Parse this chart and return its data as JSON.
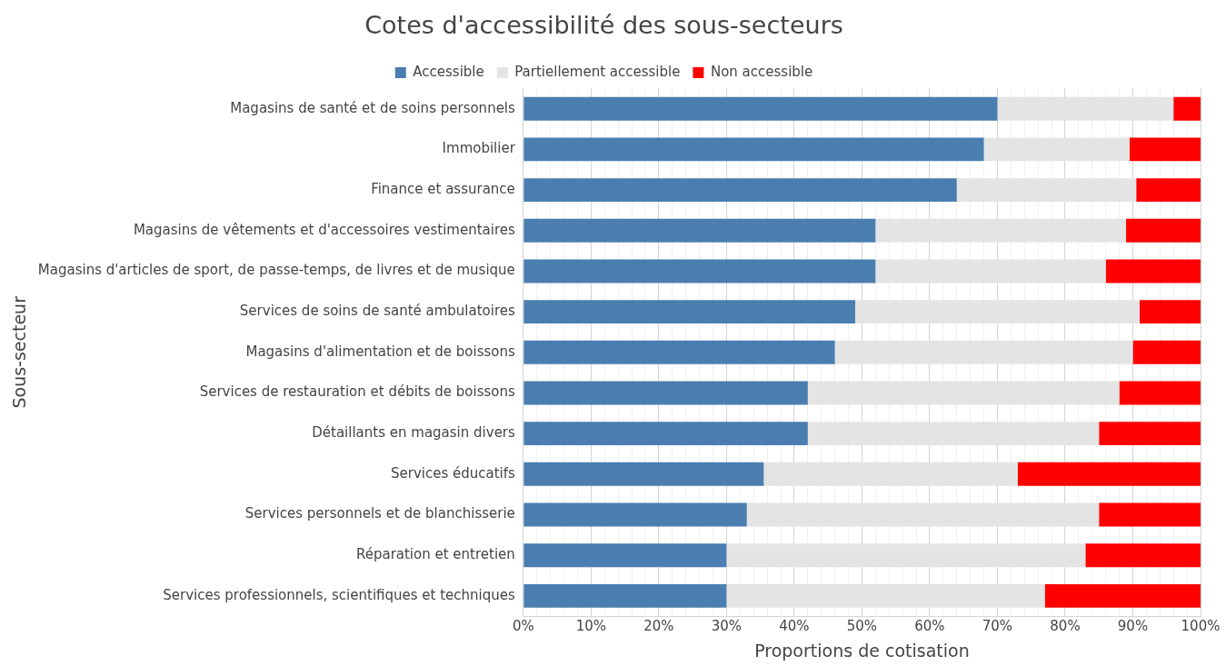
{
  "chart_data": {
    "type": "bar",
    "orientation": "horizontal",
    "stacked": true,
    "title": "Cotes d'accessibilité des sous-secteurs",
    "xlabel": "Proportions de cotisation",
    "ylabel": "Sous-secteur",
    "categories": [
      "Magasins de santé et de soins personnels",
      "Immobilier",
      "Finance et assurance",
      "Magasins de vêtements et d'accessoires vestimentaires",
      "Magasins d'articles de sport, de passe-temps, de livres et de musique",
      "Services de soins de santé ambulatoires",
      "Magasins d'alimentation et de boissons",
      "Services de restauration et débits de boissons",
      "Détaillants en magasin divers",
      "Services éducatifs",
      "Services personnels et de blanchisserie",
      "Réparation et entretien",
      "Services professionnels, scientifiques et techniques"
    ],
    "series": [
      {
        "name": "Accessible",
        "color": "#4a7eb0",
        "values": [
          70,
          68,
          64,
          52,
          52,
          49,
          46,
          42,
          42,
          35.5,
          33,
          30,
          30
        ]
      },
      {
        "name": "Partiellement accessible",
        "color": "#e4e4e4",
        "values": [
          26,
          21.5,
          26.5,
          37,
          34,
          42,
          44,
          46,
          43,
          37.5,
          52,
          53,
          47
        ]
      },
      {
        "name": "Non accessible",
        "color": "#ff0000",
        "values": [
          4,
          10.5,
          9.5,
          11,
          14,
          9,
          10,
          12,
          15,
          27,
          15,
          17,
          23
        ]
      }
    ],
    "xlim": [
      0,
      100
    ],
    "xticks": [
      {
        "value": 0,
        "label": "0%"
      },
      {
        "value": 2,
        "label": null
      },
      {
        "value": 4,
        "label": null
      },
      {
        "value": 6,
        "label": null
      },
      {
        "value": 8,
        "label": null
      },
      {
        "value": 10,
        "label": "10%"
      },
      {
        "value": 12,
        "label": null
      },
      {
        "value": 14,
        "label": null
      },
      {
        "value": 16,
        "label": null
      },
      {
        "value": 18,
        "label": null
      },
      {
        "value": 20,
        "label": "20%"
      },
      {
        "value": 22,
        "label": null
      },
      {
        "value": 24,
        "label": null
      },
      {
        "value": 26,
        "label": null
      },
      {
        "value": 28,
        "label": null
      },
      {
        "value": 30,
        "label": "30%"
      },
      {
        "value": 32,
        "label": null
      },
      {
        "value": 34,
        "label": null
      },
      {
        "value": 36,
        "label": null
      },
      {
        "value": 38,
        "label": null
      },
      {
        "value": 40,
        "label": "40%"
      },
      {
        "value": 42,
        "label": null
      },
      {
        "value": 44,
        "label": null
      },
      {
        "value": 46,
        "label": null
      },
      {
        "value": 48,
        "label": null
      },
      {
        "value": 50,
        "label": "50%"
      },
      {
        "value": 52,
        "label": null
      },
      {
        "value": 54,
        "label": null
      },
      {
        "value": 56,
        "label": null
      },
      {
        "value": 58,
        "label": null
      },
      {
        "value": 60,
        "label": "60%"
      },
      {
        "value": 62,
        "label": null
      },
      {
        "value": 64,
        "label": null
      },
      {
        "value": 66,
        "label": null
      },
      {
        "value": 68,
        "label": null
      },
      {
        "value": 70,
        "label": "70%"
      },
      {
        "value": 72,
        "label": null
      },
      {
        "value": 74,
        "label": null
      },
      {
        "value": 76,
        "label": null
      },
      {
        "value": 78,
        "label": null
      },
      {
        "value": 80,
        "label": "80%"
      },
      {
        "value": 82,
        "label": null
      },
      {
        "value": 84,
        "label": null
      },
      {
        "value": 86,
        "label": null
      },
      {
        "value": 88,
        "label": null
      },
      {
        "value": 90,
        "label": "90%"
      },
      {
        "value": 92,
        "label": null
      },
      {
        "value": 94,
        "label": null
      },
      {
        "value": 96,
        "label": null
      },
      {
        "value": 98,
        "label": null
      },
      {
        "value": 100,
        "label": "100%"
      }
    ],
    "grid": "x",
    "legend": "top"
  }
}
